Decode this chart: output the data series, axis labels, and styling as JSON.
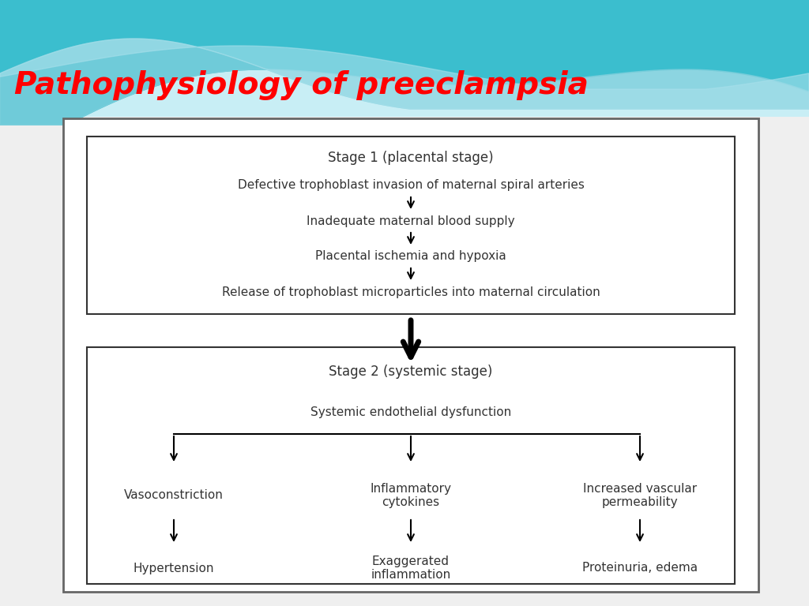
{
  "title": "Pathophysiology of preeclampsia",
  "title_color": "#FF0000",
  "title_fontsize": 28,
  "title_style": "italic",
  "bg_color": "#EFEFEF",
  "text_color": "#333333",
  "box_edge_color": "#444444",
  "stage1_title": "Stage 1 (placental stage)",
  "stage1_items": [
    "Defective trophoblast invasion of maternal spiral arteries",
    "Inadequate maternal blood supply",
    "Placental ischemia and hypoxia",
    "Release of trophoblast microparticles into maternal circulation"
  ],
  "stage2_title": "Stage 2 (systemic stage)",
  "stage2_center": "Systemic endothelial dysfunction",
  "stage2_left_top": "Vasoconstriction",
  "stage2_left_bot": "Hypertension",
  "stage2_mid_top": "Inflammatory\ncytokines",
  "stage2_mid_bot": "Exaggerated\ninflammation",
  "stage2_right_top": "Increased vascular\npermeability",
  "stage2_right_bot": "Proteinuria, edema",
  "fontsize_body": 11,
  "fontsize_stage": 12,
  "wave_color1": "#3BB8C8",
  "wave_color2": "#7DD4E0",
  "wave_color3": "#B0E4EE",
  "wave_bg": "#C8EEF5"
}
